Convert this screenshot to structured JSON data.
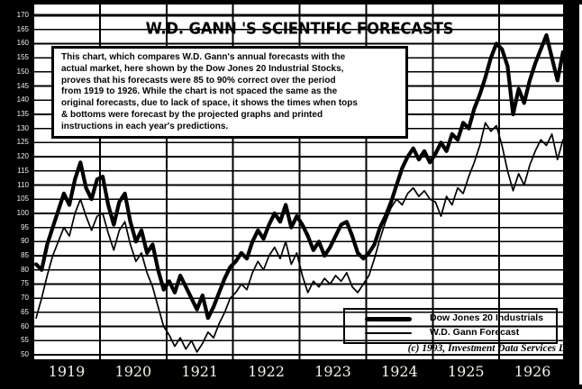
{
  "title": "W.D. GANN 'S SCIENTIFIC FORECASTS",
  "annotation": {
    "lines": [
      "This chart, which compares W.D. Gann's annual forecasts with the",
      "actual market, here shown by the Dow Jones 20 Industrial Stocks,",
      "proves that his forecasts were 85 to 90% correct over the period",
      "from 1919 to 1926. While the chart is not spaced the same as the",
      "original forecasts, due to lack of space, it shows the times when tops",
      "& bottoms were forecast by the projected graphs and printed",
      "instructions in each year's predictions."
    ]
  },
  "copyright": "(c) 1993, Investment Data Services Ltd",
  "colors": {
    "ink": "#000000",
    "paper": "#ffffff",
    "axis_band": "#000000",
    "axis_label_text": "#f3f1ea"
  },
  "chart_data": {
    "type": "line",
    "title": "W.D. GANN 'S SCIENTIFIC FORECASTS",
    "xlabel": "",
    "ylabel": "",
    "grid": "both",
    "legend_position": "bottom-right",
    "x_tick_labels": [
      "1919",
      "1920",
      "1921",
      "1922",
      "1923",
      "1924",
      "1925",
      "1926"
    ],
    "y_tick_labels": [
      "170",
      "165",
      "160",
      "155",
      "150",
      "145",
      "140",
      "135",
      "130",
      "125",
      "120",
      "115",
      "110",
      "105",
      "100",
      "95",
      "90",
      "85",
      "80",
      "75",
      "70",
      "65",
      "60",
      "55",
      "50"
    ],
    "ylim": [
      50,
      170
    ],
    "y_grid_step": 5,
    "x_range_years": [
      1919,
      1927
    ],
    "points_per_year": 12,
    "series": [
      {
        "name": "Dow Jones 20 Industrials",
        "line": "thick",
        "stroke_width": 4.2,
        "values": [
          82,
          80,
          89,
          95,
          101,
          107,
          103,
          112,
          118,
          109,
          105,
          112,
          113,
          103,
          96,
          104,
          107,
          97,
          90,
          94,
          86,
          89,
          80,
          73,
          76,
          72,
          78,
          74,
          70,
          66,
          71,
          63,
          67,
          72,
          77,
          81,
          83,
          86,
          84,
          90,
          94,
          91,
          96,
          100,
          97,
          103,
          95,
          99,
          96,
          92,
          87,
          90,
          85,
          88,
          92,
          96,
          97,
          92,
          86,
          84,
          86,
          89,
          95,
          99,
          104,
          110,
          116,
          120,
          123,
          119,
          122,
          118,
          121,
          125,
          122,
          128,
          126,
          132,
          130,
          137,
          142,
          148,
          155,
          160,
          158,
          152,
          135,
          144,
          139,
          147,
          153,
          158,
          163,
          155,
          147,
          157
        ]
      },
      {
        "name": "W.D. Gann Forecast",
        "line": "thin",
        "stroke_width": 1.7,
        "values": [
          63,
          70,
          78,
          85,
          90,
          95,
          92,
          100,
          105,
          99,
          94,
          99,
          100,
          93,
          87,
          94,
          97,
          89,
          83,
          86,
          79,
          74,
          67,
          60,
          57,
          53,
          56,
          52,
          55,
          51,
          54,
          58,
          56,
          61,
          65,
          70,
          72,
          75,
          73,
          79,
          83,
          80,
          85,
          88,
          84,
          90,
          82,
          86,
          78,
          72,
          76,
          74,
          77,
          75,
          78,
          76,
          79,
          74,
          72,
          75,
          78,
          84,
          91,
          97,
          102,
          105,
          103,
          107,
          109,
          106,
          108,
          105,
          104,
          99,
          106,
          103,
          109,
          107,
          113,
          118,
          124,
          132,
          129,
          131,
          124,
          115,
          108,
          114,
          110,
          117,
          122,
          126,
          124,
          128,
          119,
          126
        ]
      }
    ]
  }
}
